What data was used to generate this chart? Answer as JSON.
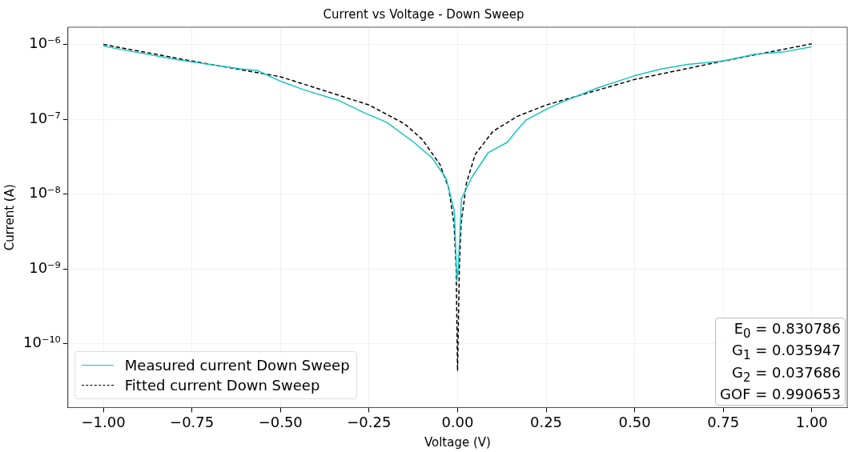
{
  "chart_data": {
    "type": "line",
    "title": "Current vs Voltage - Down Sweep",
    "xlabel": "Voltage (V)",
    "ylabel": "Current (A)",
    "log": "y",
    "grid": true,
    "legend": "bottom left",
    "xlim": [
      -1.1,
      1.1
    ],
    "ylim": [
      1.4e-11,
      1.7e-06
    ],
    "xticks": [
      {
        "value": -1,
        "label": "−1.00"
      },
      {
        "value": -0.75,
        "label": "−0.75"
      },
      {
        "value": -0.5,
        "label": "−0.50"
      },
      {
        "value": -0.25,
        "label": "−0.25"
      },
      {
        "value": 0,
        "label": "0.00"
      },
      {
        "value": 0.25,
        "label": "0.25"
      },
      {
        "value": 0.5,
        "label": "0.50"
      },
      {
        "value": 0.75,
        "label": "0.75"
      },
      {
        "value": 1,
        "label": "1.00"
      }
    ],
    "yticks": [
      {
        "value": 1e-10,
        "label": "10⁻¹⁰"
      },
      {
        "value": 1e-09,
        "label": "10⁻⁹"
      },
      {
        "value": 1e-08,
        "label": "10⁻⁸"
      },
      {
        "value": 1e-07,
        "label": "10⁻⁷"
      },
      {
        "value": 1e-06,
        "label": "10⁻⁶"
      }
    ],
    "series": [
      {
        "name": "Measured current Down Sweep",
        "color": "#17c3c3",
        "line_style": "solid",
        "x": [
          -1.0,
          -0.91,
          -0.795,
          -0.7,
          -0.61,
          -0.566,
          -0.498,
          -0.436,
          -0.338,
          -0.26,
          -0.2,
          -0.123,
          -0.071,
          -0.032,
          -0.009,
          -0.002,
          0.002,
          0.011,
          0.041,
          0.087,
          0.14,
          0.164,
          0.194,
          0.256,
          0.308,
          0.393,
          0.498,
          0.575,
          0.65,
          0.749,
          0.84,
          0.918,
          0.999
        ],
        "values": [
          9.5e-07,
          7.9e-07,
          6.3e-07,
          5.4e-07,
          4.7e-07,
          4.5e-07,
          3.2e-07,
          2.5e-07,
          1.8e-07,
          1.2e-07,
          9.1e-08,
          4.9e-08,
          3e-08,
          1.6e-08,
          5.9e-09,
          7e-10,
          1e-09,
          8.7e-09,
          1.7e-08,
          3.6e-08,
          4.9e-08,
          6.8e-08,
          9.8e-08,
          1.4e-07,
          1.8e-07,
          2.6e-07,
          3.8e-07,
          4.7e-07,
          5.4e-07,
          6e-07,
          7.4e-07,
          7.9e-07,
          9.3e-07
        ]
      },
      {
        "name": "Fitted current Down Sweep",
        "color": "#000000",
        "line_style": "dashed",
        "x": [
          -1.0,
          -0.75,
          -0.5,
          -0.375,
          -0.25,
          -0.15,
          -0.1,
          -0.05,
          -0.025,
          -0.01,
          -0.004,
          0,
          0.005,
          0.01,
          0.025,
          0.05,
          0.1,
          0.17,
          0.25,
          0.5,
          0.75,
          1.0
        ],
        "values": [
          1e-06,
          6e-07,
          3.7e-07,
          2.4e-07,
          1.55e-07,
          8.7e-08,
          5.4e-08,
          2.5e-08,
          1.2e-08,
          4e-09,
          1e-09,
          4.3e-11,
          1e-09,
          4e-09,
          1.4e-08,
          3.4e-08,
          6.9e-08,
          1.1e-07,
          1.55e-07,
          3.4e-07,
          6e-07,
          1.02e-06
        ]
      }
    ],
    "annotations": [
      "E$_{0}$ = 0.830786",
      "G$_{1}$ = 0.035947",
      "G$_{2}$ = 0.037686",
      "GOF = 0.990653"
    ]
  }
}
